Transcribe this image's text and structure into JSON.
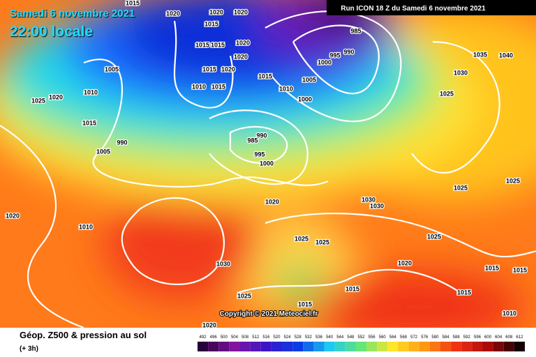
{
  "header": {
    "date": "Samedi 6 novembre 2021",
    "time": "22:00 locale",
    "run": "Run ICON 18 Z du Samedi 6 novembre 2021"
  },
  "footer": {
    "title": "Géop. Z500 & pression au sol",
    "step": "(+ 3h)",
    "copyright": "Copyright © 2021 Meteociel.fr"
  },
  "legend": {
    "levels": [
      492,
      496,
      500,
      504,
      508,
      512,
      516,
      520,
      524,
      528,
      532,
      536,
      540,
      544,
      548,
      552,
      556,
      560,
      564,
      568,
      572,
      576,
      580,
      584,
      588,
      592,
      596,
      600,
      604,
      608,
      612
    ]
  },
  "isobar_labels": [
    "1015",
    "1020",
    "1020",
    "1015",
    "1020",
    "1020",
    "1015",
    "1015",
    "1020",
    "1015",
    "1020",
    "1015",
    "1010",
    "1015",
    "1010",
    "1005",
    "1000",
    "1005",
    "1010",
    "1025",
    "1020",
    "1015",
    "1005",
    "990",
    "990",
    "985",
    "995",
    "1000",
    "985",
    "990",
    "995",
    "1000",
    "1035",
    "1040",
    "1030",
    "1025",
    "1025",
    "1025",
    "1020",
    "1010",
    "1020",
    "1030",
    "1030",
    "1025",
    "1025",
    "1025",
    "1020",
    "1030",
    "1015",
    "1015",
    "1015",
    "1015",
    "1025",
    "1020",
    "1010",
    "1015"
  ]
}
